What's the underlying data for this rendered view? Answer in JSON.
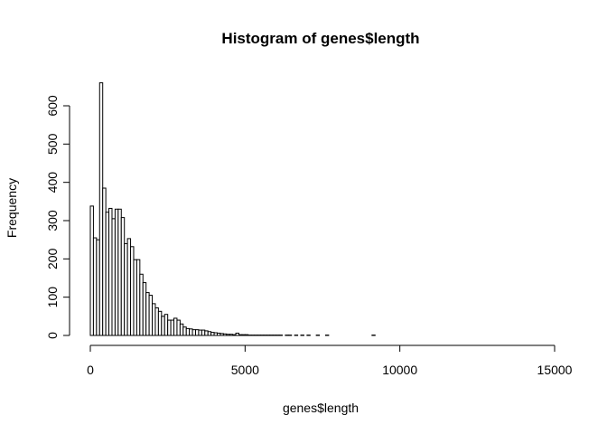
{
  "chart_data": {
    "type": "bar",
    "title": "Histogram of genes$length",
    "xlabel": "genes$length",
    "ylabel": "Frequency",
    "xlim": [
      0,
      15000
    ],
    "ylim": [
      0,
      660
    ],
    "x_ticks": [
      0,
      5000,
      10000,
      15000
    ],
    "y_ticks": [
      0,
      100,
      200,
      300,
      400,
      500,
      600
    ],
    "bin_width": 100,
    "bin_start": 0,
    "values": [
      338,
      255,
      250,
      660,
      385,
      322,
      332,
      305,
      330,
      330,
      308,
      240,
      253,
      232,
      198,
      198,
      160,
      138,
      112,
      105,
      83,
      72,
      63,
      50,
      55,
      40,
      40,
      45,
      40,
      30,
      22,
      18,
      17,
      15,
      15,
      14,
      14,
      12,
      10,
      8,
      7,
      6,
      5,
      4,
      3,
      3,
      2,
      6,
      2,
      2,
      2,
      1,
      1,
      1,
      1,
      1,
      1,
      1,
      1,
      1,
      1,
      1,
      0,
      1,
      1,
      0,
      1,
      0,
      1,
      0,
      1,
      0,
      0,
      1,
      0,
      0,
      1,
      0,
      0,
      0,
      0,
      0,
      0,
      0,
      0,
      0,
      0,
      0,
      0,
      0,
      0,
      1,
      0,
      0,
      0,
      0,
      0,
      0,
      0,
      0,
      0,
      0,
      0,
      0,
      0,
      0,
      0,
      0,
      0,
      0,
      0,
      0,
      0,
      0,
      0,
      0,
      0,
      0,
      0,
      0,
      0,
      0,
      0,
      0,
      0,
      0,
      0,
      0,
      0,
      0,
      0,
      0,
      0,
      0,
      0,
      0,
      0,
      0,
      0,
      0,
      0,
      0,
      0,
      0,
      0,
      0,
      0,
      0
    ]
  }
}
